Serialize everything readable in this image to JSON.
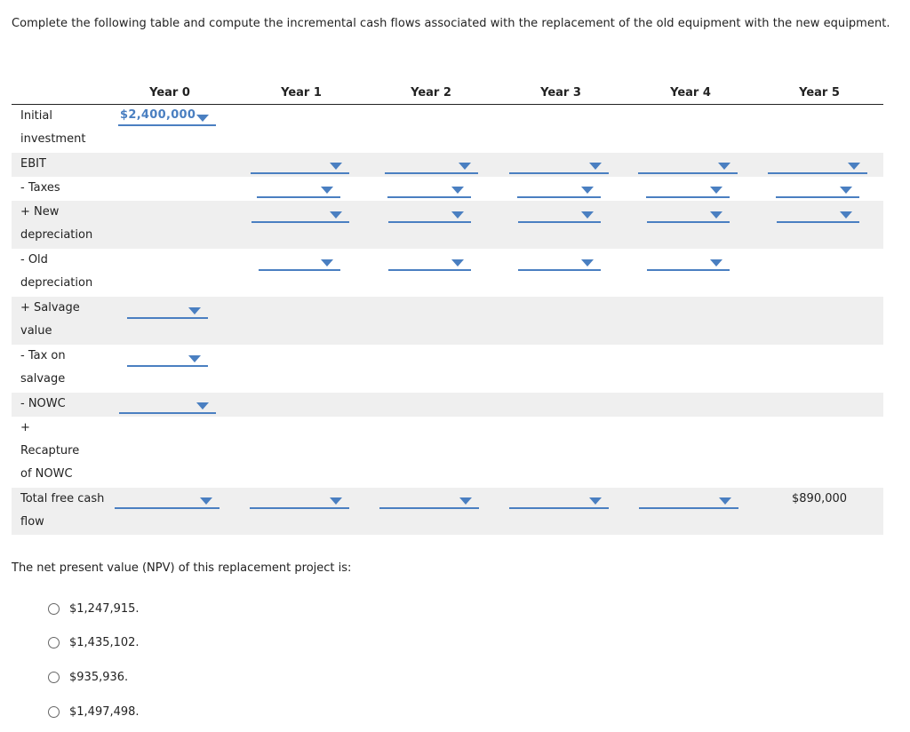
{
  "instruction": "Complete the following table and compute the incremental cash flows associated with the replacement of the old equipment with the new equipment.",
  "headers": [
    "Year 0",
    "Year 1",
    "Year 2",
    "Year 3",
    "Year 4",
    "Year 5"
  ],
  "rows": [
    {
      "label": "Initial investment"
    },
    {
      "label": "EBIT"
    },
    {
      "label": "- Taxes"
    },
    {
      "label": "+ New depreciation"
    },
    {
      "label": "- Old depreciation"
    },
    {
      "label": "+ Salvage value"
    },
    {
      "label": "- Tax on salvage"
    },
    {
      "label": "- NOWC"
    },
    {
      "label": "+ Recapture of NOWC"
    },
    {
      "label": "Total free cash flow"
    }
  ],
  "initial_investment_value": "$2,400,000",
  "total_fcf_year5": "$890,000",
  "question": "The net present value (NPV) of this replacement project is:",
  "options": [
    "$1,247,915.",
    "$1,435,102.",
    "$935,936.",
    "$1,497,498."
  ],
  "colors": {
    "accent": "#4a7fc1",
    "row_shade": "#efefef"
  }
}
